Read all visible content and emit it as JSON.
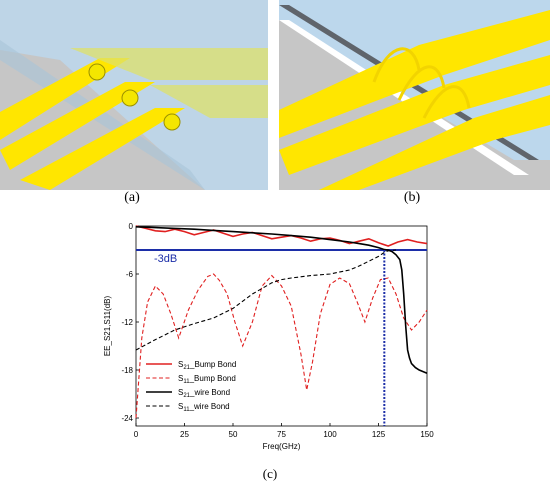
{
  "captions": {
    "a": "(a)",
    "b": "(b)",
    "c": "(c)"
  },
  "colors": {
    "metal": "#ffe600",
    "metal_edge": "#b8a800",
    "substrate": "#c6c6c6",
    "glass": "#bcd7ec",
    "chip_dark": "#5f646b",
    "s21_bump": "#e02020",
    "s11_bump": "#e02020",
    "s21_wire": "#000000",
    "s11_wire": "#000000",
    "ref_line": "#1c2ea8",
    "marker": "#1c2ea8"
  },
  "chart_data": {
    "type": "line",
    "xlabel": "Freq(GHz)",
    "ylabel": "EE_S21,S11(dB)",
    "xlim": [
      0,
      150
    ],
    "ylim": [
      -25,
      0
    ],
    "xticks": [
      0,
      25,
      50,
      75,
      100,
      125,
      150
    ],
    "yticks": [
      0,
      -6,
      -12,
      -18,
      -24
    ],
    "xtick_labels": [
      "0",
      "25",
      "50",
      "75",
      "100",
      "125",
      "150"
    ],
    "ytick_labels": [
      "0",
      "-6",
      "-12",
      "-18",
      "-24"
    ],
    "reference_line": {
      "y": -3,
      "label": "-3dB"
    },
    "marker_line": {
      "x": 128
    },
    "legend_position": "bottom-left",
    "series": [
      {
        "name": "S21_Bump Bond",
        "name_main": "S",
        "name_sub": "21",
        "name_rest": "_Bump Bond",
        "style": "solid",
        "color": "#e02020",
        "x": [
          0,
          5,
          10,
          15,
          20,
          25,
          30,
          35,
          40,
          45,
          50,
          55,
          60,
          65,
          70,
          75,
          80,
          85,
          90,
          95,
          100,
          105,
          110,
          115,
          120,
          125,
          130,
          135,
          140,
          145,
          150
        ],
        "y": [
          0,
          -0.3,
          -0.6,
          -0.7,
          -0.4,
          -0.7,
          -1.1,
          -0.8,
          -0.5,
          -0.9,
          -1.3,
          -1.0,
          -0.8,
          -1.2,
          -1.6,
          -1.4,
          -1.2,
          -1.5,
          -1.9,
          -1.6,
          -1.5,
          -1.8,
          -2.2,
          -1.9,
          -1.6,
          -2.1,
          -2.5,
          -2.0,
          -1.7,
          -2.0,
          -2.2
        ]
      },
      {
        "name": "S11_Bump Bond",
        "name_main": "S",
        "name_sub": "11",
        "name_rest": "_Bump Bond",
        "style": "dashed",
        "color": "#e02020",
        "x": [
          0,
          3,
          6,
          10,
          14,
          18,
          22,
          27,
          32,
          37,
          40,
          43,
          47,
          51,
          55,
          60,
          65,
          70,
          75,
          80,
          85,
          88,
          91,
          95,
          100,
          105,
          110,
          114,
          118,
          122,
          126,
          130,
          134,
          138,
          142,
          146,
          150
        ],
        "y": [
          -24,
          -14,
          -9.5,
          -7.5,
          -8.5,
          -11,
          -14,
          -10.5,
          -8,
          -6.3,
          -6,
          -6.8,
          -8.5,
          -12,
          -15,
          -12,
          -7.5,
          -6.2,
          -7.5,
          -10,
          -16,
          -20.5,
          -17,
          -11,
          -7.3,
          -6.5,
          -7.2,
          -9.5,
          -12,
          -9,
          -6.7,
          -6.5,
          -8.5,
          -11.5,
          -13,
          -12,
          -10.5
        ]
      },
      {
        "name": "S21_wire Bond",
        "name_main": "S",
        "name_sub": "21",
        "name_rest": "_wire Bond",
        "style": "solid",
        "color": "#000000",
        "x": [
          0,
          10,
          20,
          30,
          40,
          50,
          60,
          70,
          80,
          90,
          100,
          110,
          115,
          120,
          125,
          128,
          130,
          132,
          134,
          136,
          137,
          138,
          139,
          140,
          141,
          142,
          144,
          146,
          148,
          150
        ],
        "y": [
          -0.1,
          -0.2,
          -0.3,
          -0.4,
          -0.55,
          -0.7,
          -0.85,
          -1.0,
          -1.2,
          -1.4,
          -1.7,
          -2.0,
          -2.2,
          -2.4,
          -2.7,
          -2.95,
          -3.0,
          -3.2,
          -3.6,
          -4.2,
          -5.5,
          -8.5,
          -12.5,
          -15.5,
          -16.5,
          -17.2,
          -17.7,
          -18.0,
          -18.2,
          -18.4
        ]
      },
      {
        "name": "S11_wire Bond",
        "name_main": "S",
        "name_sub": "11",
        "name_rest": "_wire Bond",
        "style": "dashed",
        "color": "#000000",
        "x": [
          0,
          10,
          20,
          30,
          40,
          50,
          60,
          70,
          75,
          80,
          90,
          100,
          110,
          115,
          120,
          125,
          128,
          130,
          132,
          134
        ],
        "y": [
          -15.5,
          -14.2,
          -13,
          -12.2,
          -11.5,
          -10.3,
          -8.5,
          -7.1,
          -6.7,
          -6.5,
          -6.2,
          -6.0,
          -5.5,
          -5.0,
          -4.4,
          -3.8,
          -3.3,
          -3.1,
          -3.05,
          -3.0
        ]
      }
    ]
  }
}
